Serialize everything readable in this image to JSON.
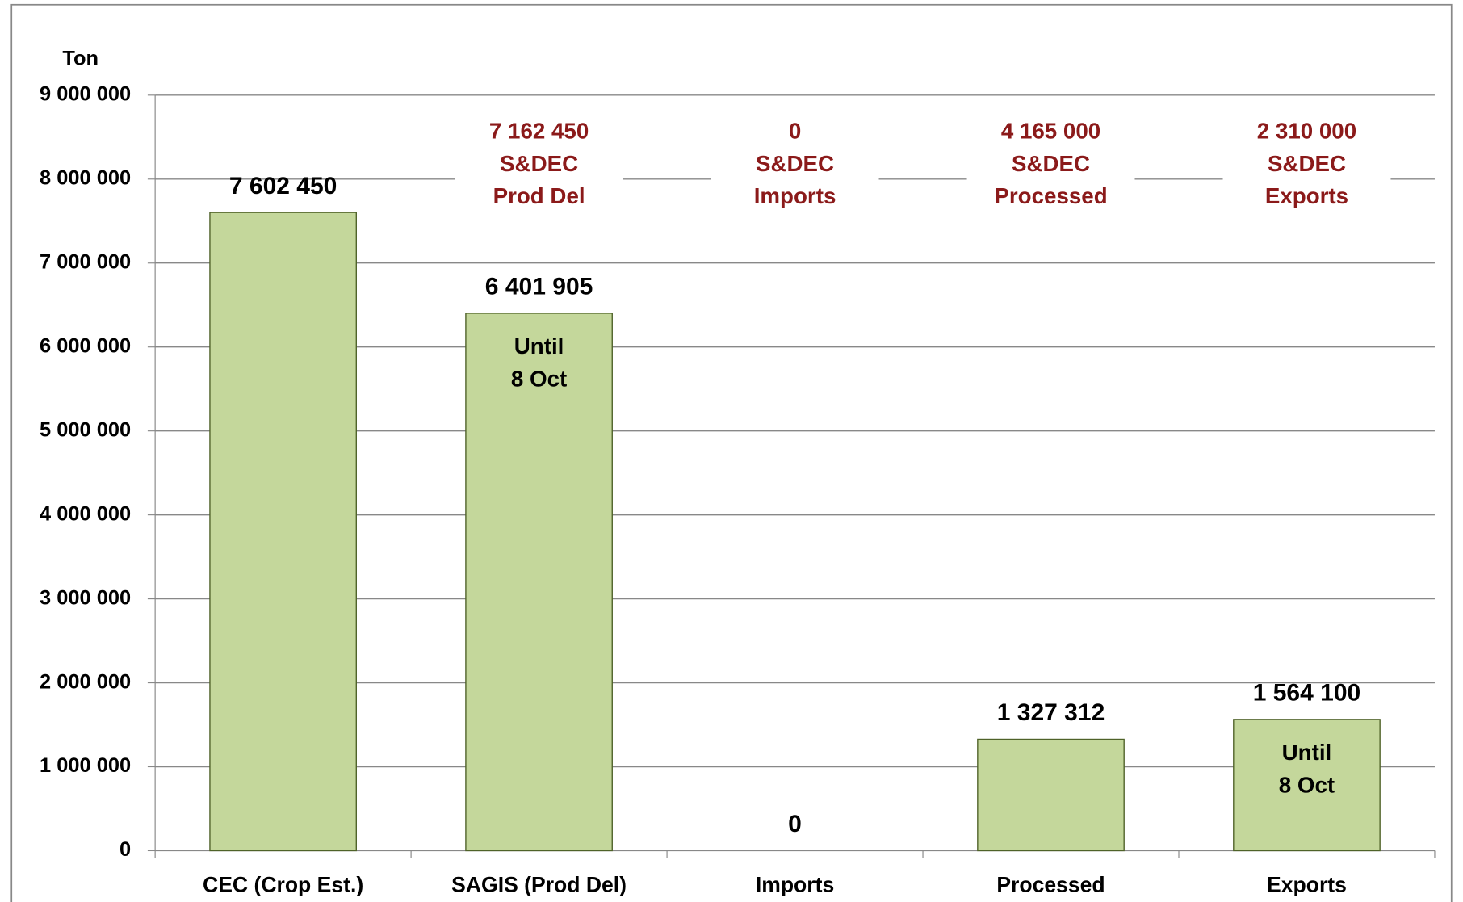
{
  "chart_data": {
    "type": "bar",
    "y_axis_label": "Ton",
    "categories": [
      "CEC (Crop Est.)",
      "SAGIS (Prod Del)",
      "Imports",
      "Processed",
      "Exports"
    ],
    "values": [
      7602450,
      6401905,
      0,
      1327312,
      1564100
    ],
    "value_labels": [
      "7 602 450",
      "6 401 905",
      "0",
      "1 327 312",
      "1 564 100"
    ],
    "color": "#c4d79b",
    "edge_color": "#4f6228",
    "ylim": [
      0,
      9000000
    ],
    "yticks": [
      {
        "value": 0,
        "label": "0"
      },
      {
        "value": 1000000,
        "label": "1 000 000"
      },
      {
        "value": 2000000,
        "label": "2 000 000"
      },
      {
        "value": 3000000,
        "label": "3 000 000"
      },
      {
        "value": 4000000,
        "label": "4 000 000"
      },
      {
        "value": 5000000,
        "label": "5 000 000"
      },
      {
        "value": 6000000,
        "label": "6 000 000"
      },
      {
        "value": 7000000,
        "label": "7 000 000"
      },
      {
        "value": 8000000,
        "label": "8 000 000"
      },
      {
        "value": 9000000,
        "label": "9 000 000"
      }
    ],
    "grid": true,
    "target_annotations": [
      null,
      [
        "7 162 450",
        "S&DEC",
        "Prod Del"
      ],
      [
        "0",
        "S&DEC",
        "Imports"
      ],
      [
        "4 165 000",
        "S&DEC",
        "Processed"
      ],
      [
        "2 310 000",
        "S&DEC",
        "Exports"
      ]
    ],
    "bar_notes": [
      null,
      [
        "Until",
        "8 Oct"
      ],
      null,
      null,
      [
        "Until",
        "8 Oct"
      ]
    ]
  }
}
